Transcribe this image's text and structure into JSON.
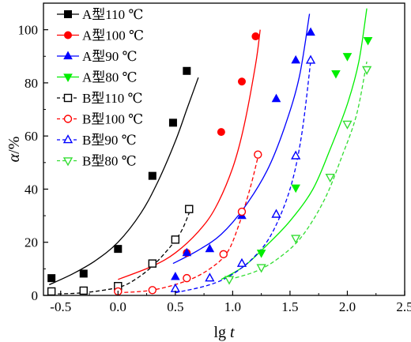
{
  "chart_data": {
    "type": "scatter",
    "xlabel": "lg t",
    "xlabel_parts": {
      "main": "lg ",
      "var": "t"
    },
    "ylabel": "α/%",
    "ylabel_parts": {
      "var": "α",
      "unit": "/%"
    },
    "xlim": [
      -0.65,
      2.5
    ],
    "ylim": [
      0,
      110
    ],
    "x_ticks": [
      -0.5,
      0.0,
      0.5,
      1.0,
      1.5,
      2.0,
      2.5
    ],
    "x_tick_labels": [
      "-0.5",
      "0.0",
      "0.5",
      "1.0",
      "1.5",
      "2.0",
      "2.5"
    ],
    "y_ticks": [
      0,
      20,
      40,
      60,
      80,
      100
    ],
    "y_tick_labels": [
      "0",
      "20",
      "40",
      "60",
      "80",
      "100"
    ],
    "grid": false,
    "legend_position": "top-left",
    "series": [
      {
        "name": "A型110 ℃",
        "color": "#000000",
        "marker": "square-filled",
        "line": "solid",
        "points": [
          [
            -0.58,
            6.5
          ],
          [
            -0.3,
            8.2
          ],
          [
            0.0,
            17.5
          ],
          [
            0.3,
            45.0
          ],
          [
            0.48,
            65.0
          ],
          [
            0.6,
            84.5
          ]
        ],
        "fit": [
          [
            -0.6,
            4.0
          ],
          [
            -0.4,
            8.0
          ],
          [
            -0.2,
            13.0
          ],
          [
            0.0,
            20.0
          ],
          [
            0.2,
            31.0
          ],
          [
            0.35,
            43.0
          ],
          [
            0.5,
            58.0
          ],
          [
            0.6,
            70.0
          ],
          [
            0.7,
            82.0
          ]
        ]
      },
      {
        "name": "A型100 ℃",
        "color": "#ff0000",
        "marker": "circle-filled",
        "line": "solid",
        "points": [
          [
            0.6,
            16.0
          ],
          [
            0.9,
            61.5
          ],
          [
            1.08,
            80.5
          ],
          [
            1.2,
            97.5
          ]
        ],
        "fit": [
          [
            0.0,
            6.0
          ],
          [
            0.3,
            11.0
          ],
          [
            0.5,
            16.0
          ],
          [
            0.7,
            24.0
          ],
          [
            0.85,
            33.0
          ],
          [
            1.0,
            48.0
          ],
          [
            1.1,
            64.0
          ],
          [
            1.2,
            87.0
          ],
          [
            1.24,
            100.0
          ]
        ]
      },
      {
        "name": "A型90 ℃",
        "color": "#0000ff",
        "marker": "triangle-up-filled",
        "line": "solid",
        "points": [
          [
            0.5,
            7.0
          ],
          [
            0.6,
            16.0
          ],
          [
            0.8,
            17.5
          ],
          [
            1.08,
            30.0
          ],
          [
            1.38,
            74.0
          ],
          [
            1.55,
            88.5
          ],
          [
            1.68,
            99.0
          ]
        ],
        "fit": [
          [
            0.48,
            12.0
          ],
          [
            0.7,
            17.0
          ],
          [
            0.9,
            23.0
          ],
          [
            1.1,
            33.0
          ],
          [
            1.3,
            47.0
          ],
          [
            1.45,
            63.0
          ],
          [
            1.58,
            82.0
          ],
          [
            1.67,
            106.0
          ]
        ]
      },
      {
        "name": "A型80 ℃",
        "color": "#00ee00",
        "marker": "triangle-down-filled",
        "line": "solid",
        "points": [
          [
            1.25,
            16.0
          ],
          [
            1.55,
            40.5
          ],
          [
            1.9,
            83.5
          ],
          [
            2.0,
            90.0
          ],
          [
            2.18,
            96.0
          ]
        ],
        "fit": [
          [
            0.9,
            6.0
          ],
          [
            1.1,
            11.0
          ],
          [
            1.3,
            19.0
          ],
          [
            1.5,
            28.0
          ],
          [
            1.7,
            40.0
          ],
          [
            1.85,
            55.0
          ],
          [
            2.0,
            72.0
          ],
          [
            2.1,
            88.0
          ],
          [
            2.17,
            108.0
          ]
        ]
      },
      {
        "name": "B型110 ℃",
        "color": "#000000",
        "marker": "square-open",
        "line": "dashed",
        "points": [
          [
            -0.58,
            1.5
          ],
          [
            -0.3,
            1.8
          ],
          [
            0.0,
            3.5
          ],
          [
            0.3,
            12.0
          ],
          [
            0.5,
            21.0
          ],
          [
            0.62,
            32.5
          ]
        ],
        "fit": [
          [
            -0.58,
            0.5
          ],
          [
            -0.3,
            1.0
          ],
          [
            0.0,
            3.0
          ],
          [
            0.15,
            6.0
          ],
          [
            0.3,
            11.0
          ],
          [
            0.45,
            18.0
          ],
          [
            0.55,
            24.0
          ],
          [
            0.62,
            31.0
          ]
        ]
      },
      {
        "name": "B型100 ℃",
        "color": "#ff0000",
        "marker": "circle-open",
        "line": "dashed",
        "points": [
          [
            0.0,
            1.5
          ],
          [
            0.3,
            2.0
          ],
          [
            0.6,
            6.5
          ],
          [
            0.92,
            15.5
          ],
          [
            1.08,
            31.5
          ],
          [
            1.22,
            53.0
          ]
        ],
        "fit": [
          [
            0.0,
            1.0
          ],
          [
            0.3,
            2.0
          ],
          [
            0.6,
            5.5
          ],
          [
            0.8,
            10.0
          ],
          [
            0.95,
            16.0
          ],
          [
            1.05,
            26.0
          ],
          [
            1.15,
            40.0
          ],
          [
            1.22,
            52.0
          ]
        ]
      },
      {
        "name": "B型90 ℃",
        "color": "#0000ff",
        "marker": "triangle-up-open",
        "line": "dashed",
        "points": [
          [
            0.5,
            2.5
          ],
          [
            0.8,
            6.5
          ],
          [
            1.08,
            12.0
          ],
          [
            1.38,
            30.5
          ],
          [
            1.55,
            52.5
          ],
          [
            1.68,
            88.5
          ]
        ],
        "fit": [
          [
            0.5,
            1.0
          ],
          [
            0.8,
            4.0
          ],
          [
            1.0,
            8.0
          ],
          [
            1.2,
            15.0
          ],
          [
            1.35,
            24.0
          ],
          [
            1.5,
            40.0
          ],
          [
            1.6,
            60.0
          ],
          [
            1.68,
            88.0
          ]
        ]
      },
      {
        "name": "B型80 ℃",
        "color": "#33dd33",
        "marker": "triangle-down-open",
        "line": "dashed",
        "points": [
          [
            0.97,
            6.0
          ],
          [
            1.25,
            10.5
          ],
          [
            1.55,
            21.5
          ],
          [
            1.85,
            44.5
          ],
          [
            2.0,
            64.5
          ],
          [
            2.17,
            85.0
          ]
        ],
        "fit": [
          [
            0.97,
            6.0
          ],
          [
            1.2,
            9.0
          ],
          [
            1.4,
            14.0
          ],
          [
            1.6,
            22.0
          ],
          [
            1.8,
            36.0
          ],
          [
            1.95,
            52.0
          ],
          [
            2.08,
            68.0
          ],
          [
            2.17,
            88.0
          ]
        ]
      }
    ]
  }
}
